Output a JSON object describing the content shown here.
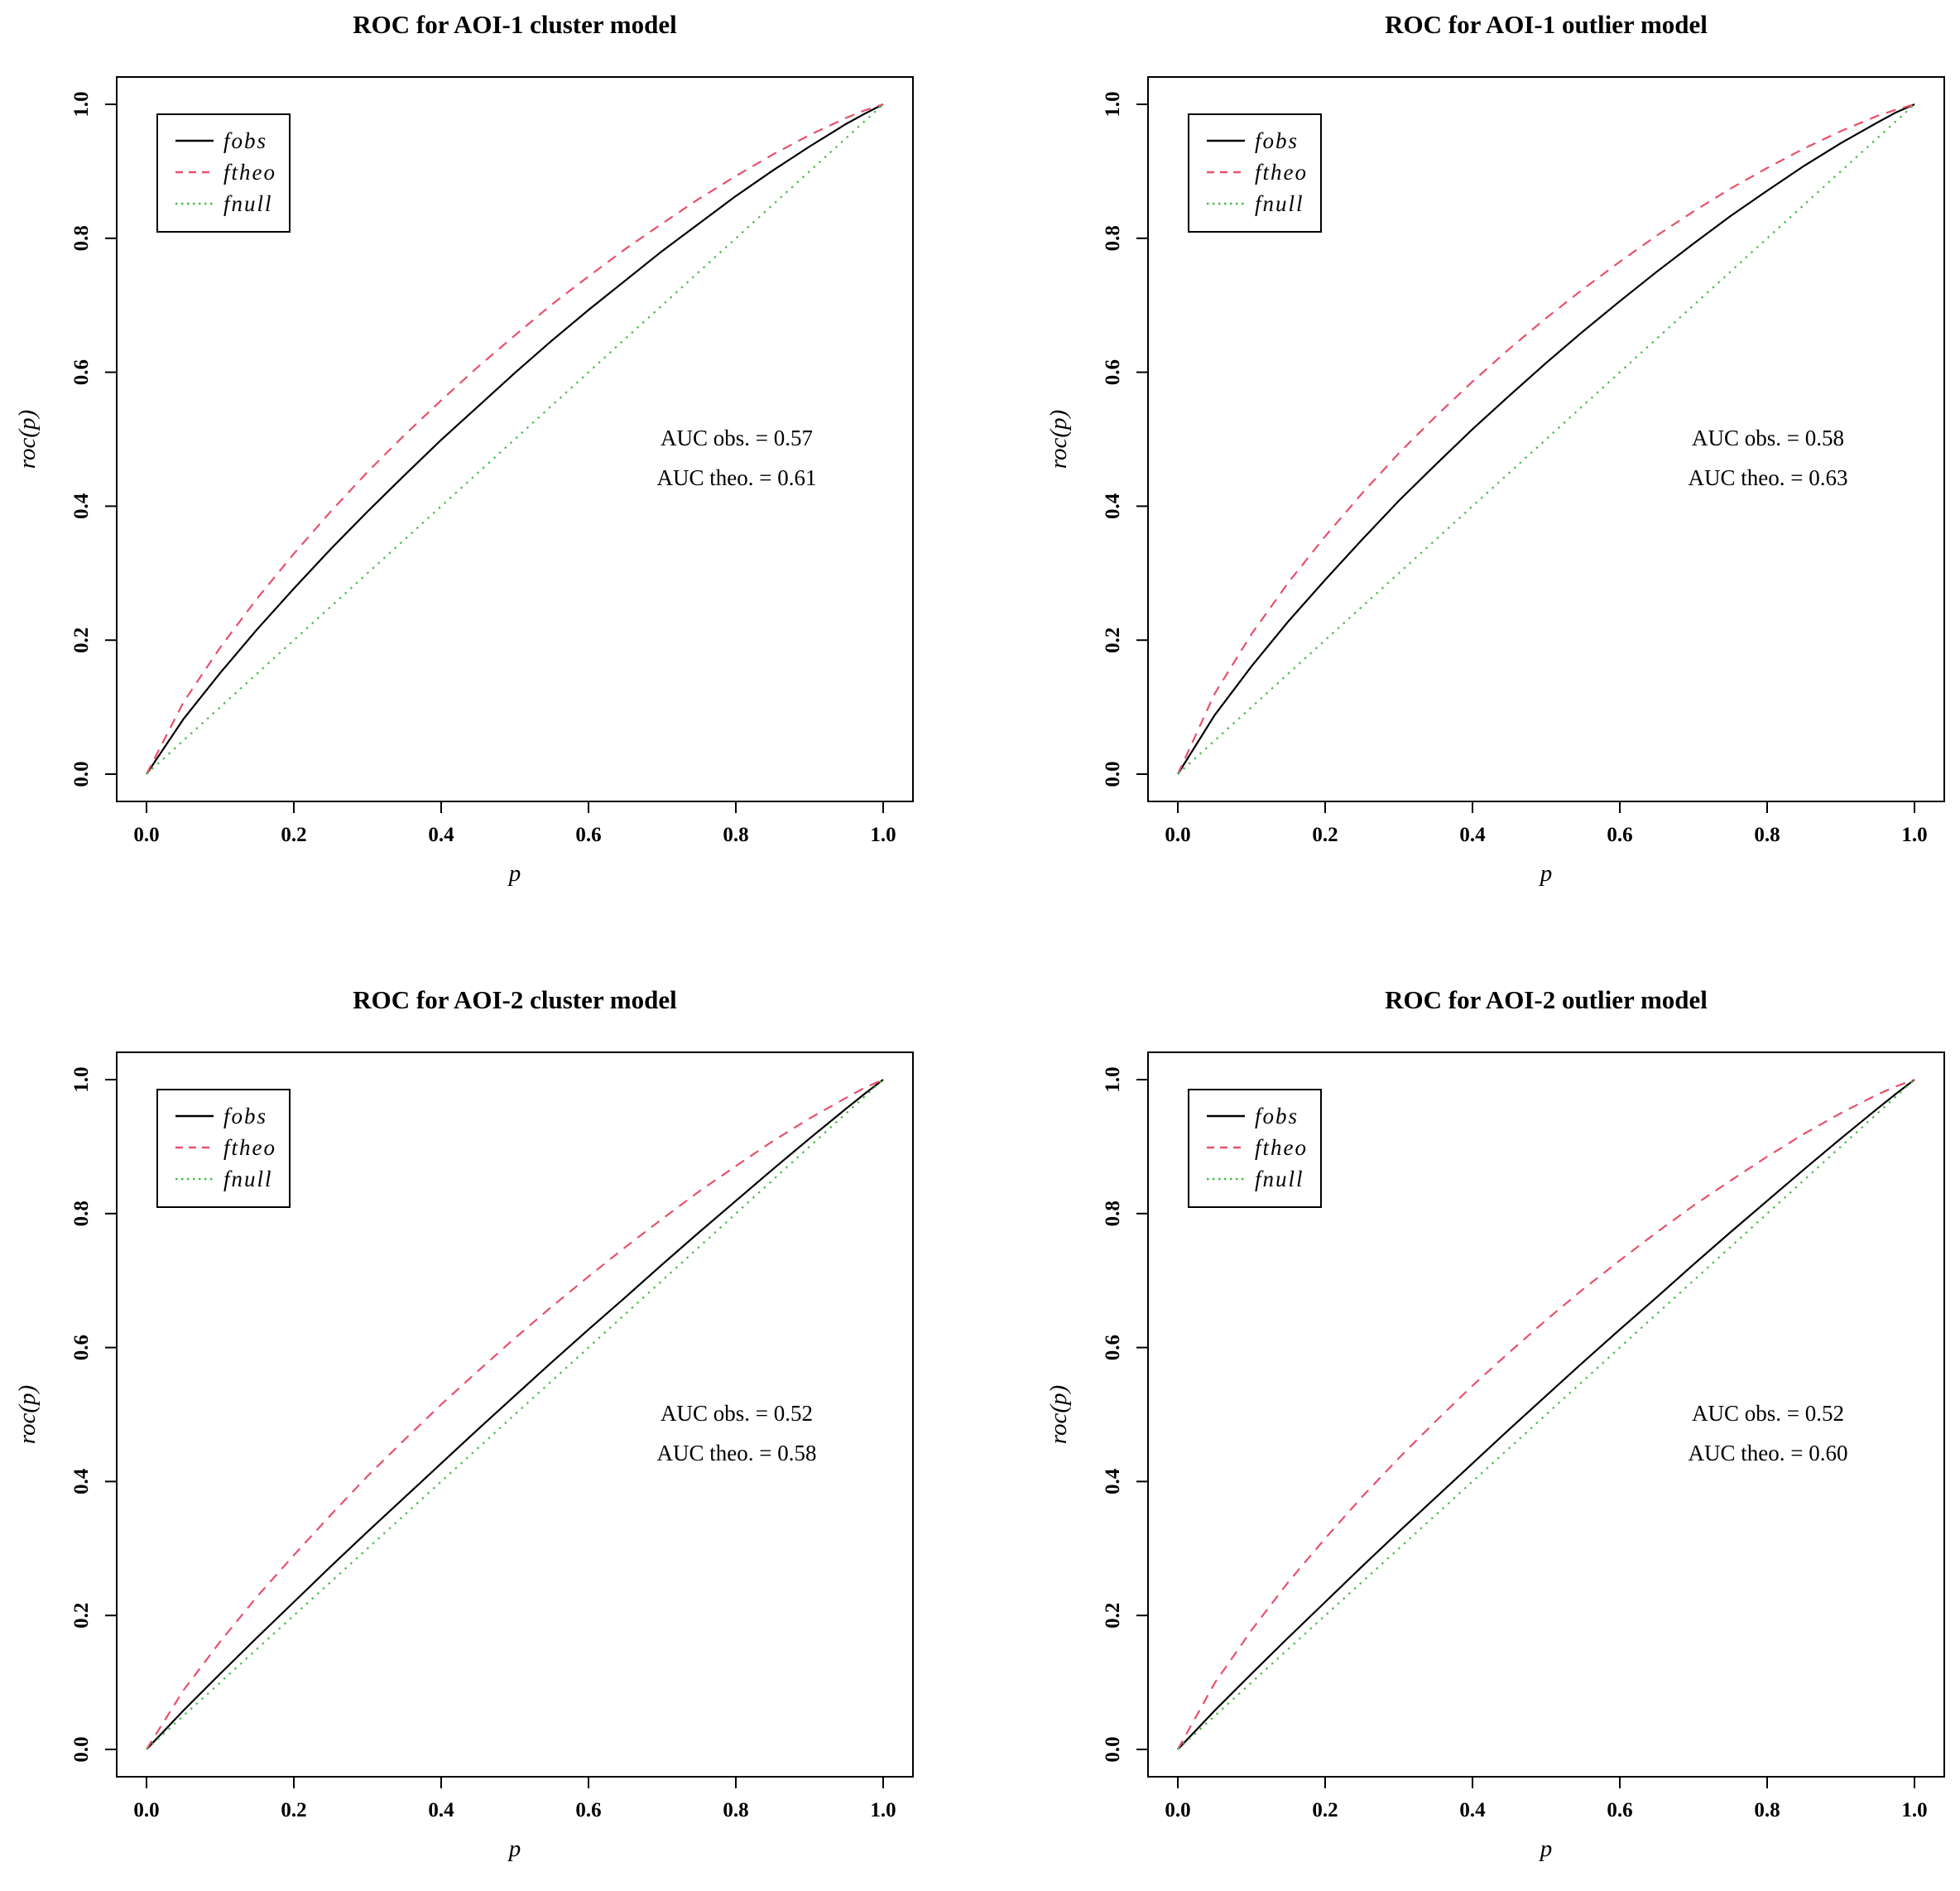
{
  "figure": {
    "background": "#ffffff",
    "rows": 2,
    "cols": 2
  },
  "legend": {
    "position": "topleft",
    "items": [
      {
        "label": "fobs",
        "color": "#000000",
        "line_style": "solid"
      },
      {
        "label": "ftheo",
        "color": "#e8506a",
        "line_style": "dashed"
      },
      {
        "label": "fnull",
        "color": "#4cbb4c",
        "line_style": "dotted"
      }
    ]
  },
  "chart_data": [
    {
      "type": "line",
      "title": "ROC for AOI-1 cluster model",
      "xlabel": "p",
      "ylabel": "roc(p)",
      "xlim": [
        0,
        1
      ],
      "ylim": [
        0,
        1
      ],
      "xticks": [
        "0.0",
        "0.2",
        "0.4",
        "0.6",
        "0.8",
        "1.0"
      ],
      "yticks": [
        "0.0",
        "0.2",
        "0.4",
        "0.6",
        "0.8",
        "1.0"
      ],
      "grid": false,
      "legend_position": "topleft",
      "annotations": [
        "AUC obs. = 0.57",
        "AUC theo. = 0.61"
      ],
      "auc": {
        "obs": 0.57,
        "theo": 0.61
      },
      "x": [
        0,
        0.05,
        0.1,
        0.15,
        0.2,
        0.25,
        0.3,
        0.35,
        0.4,
        0.45,
        0.5,
        0.55,
        0.6,
        0.65,
        0.7,
        0.75,
        0.8,
        0.85,
        0.9,
        0.95,
        0.975,
        1
      ],
      "series": [
        {
          "name": "fobs",
          "color": "#000000",
          "line_style": "solid",
          "values": [
            0,
            0.082,
            0.151,
            0.216,
            0.277,
            0.336,
            0.392,
            0.446,
            0.499,
            0.549,
            0.599,
            0.647,
            0.693,
            0.737,
            0.781,
            0.822,
            0.863,
            0.901,
            0.937,
            0.971,
            0.986,
            1
          ]
        },
        {
          "name": "ftheo",
          "color": "#e8506a",
          "line_style": "dashed",
          "values": [
            0,
            0.107,
            0.189,
            0.262,
            0.329,
            0.392,
            0.451,
            0.506,
            0.558,
            0.608,
            0.655,
            0.701,
            0.743,
            0.784,
            0.822,
            0.859,
            0.893,
            0.925,
            0.954,
            0.98,
            0.991,
            1
          ]
        },
        {
          "name": "fnull",
          "color": "#4cbb4c",
          "line_style": "dotted",
          "values": [
            0,
            0.05,
            0.1,
            0.15,
            0.2,
            0.25,
            0.3,
            0.35,
            0.4,
            0.45,
            0.5,
            0.55,
            0.6,
            0.65,
            0.7,
            0.75,
            0.8,
            0.85,
            0.9,
            0.95,
            0.975,
            1
          ]
        }
      ]
    },
    {
      "type": "line",
      "title": "ROC for AOI-1 outlier model",
      "xlabel": "p",
      "ylabel": "roc(p)",
      "xlim": [
        0,
        1
      ],
      "ylim": [
        0,
        1
      ],
      "xticks": [
        "0.0",
        "0.2",
        "0.4",
        "0.6",
        "0.8",
        "1.0"
      ],
      "yticks": [
        "0.0",
        "0.2",
        "0.4",
        "0.6",
        "0.8",
        "1.0"
      ],
      "grid": false,
      "legend_position": "topleft",
      "annotations": [
        "AUC obs. = 0.58",
        "AUC theo. = 0.63"
      ],
      "auc": {
        "obs": 0.58,
        "theo": 0.63
      },
      "x": [
        0,
        0.05,
        0.1,
        0.15,
        0.2,
        0.25,
        0.3,
        0.35,
        0.4,
        0.45,
        0.5,
        0.55,
        0.6,
        0.65,
        0.7,
        0.75,
        0.8,
        0.85,
        0.9,
        0.95,
        0.975,
        1
      ],
      "series": [
        {
          "name": "fobs",
          "color": "#000000",
          "line_style": "solid",
          "values": [
            0,
            0.088,
            0.161,
            0.228,
            0.29,
            0.35,
            0.408,
            0.462,
            0.515,
            0.565,
            0.614,
            0.661,
            0.706,
            0.75,
            0.792,
            0.833,
            0.871,
            0.908,
            0.942,
            0.973,
            0.988,
            1
          ]
        },
        {
          "name": "ftheo",
          "color": "#e8506a",
          "line_style": "dashed",
          "values": [
            0,
            0.12,
            0.209,
            0.286,
            0.355,
            0.419,
            0.479,
            0.534,
            0.586,
            0.635,
            0.681,
            0.724,
            0.765,
            0.804,
            0.84,
            0.874,
            0.905,
            0.934,
            0.96,
            0.983,
            0.992,
            1
          ]
        },
        {
          "name": "fnull",
          "color": "#4cbb4c",
          "line_style": "dotted",
          "values": [
            0,
            0.05,
            0.1,
            0.15,
            0.2,
            0.25,
            0.3,
            0.35,
            0.4,
            0.45,
            0.5,
            0.55,
            0.6,
            0.65,
            0.7,
            0.75,
            0.8,
            0.85,
            0.9,
            0.95,
            0.975,
            1
          ]
        }
      ]
    },
    {
      "type": "line",
      "title": "ROC for AOI-2 cluster model",
      "xlabel": "p",
      "ylabel": "roc(p)",
      "xlim": [
        0,
        1
      ],
      "ylim": [
        0,
        1
      ],
      "xticks": [
        "0.0",
        "0.2",
        "0.4",
        "0.6",
        "0.8",
        "1.0"
      ],
      "yticks": [
        "0.0",
        "0.2",
        "0.4",
        "0.6",
        "0.8",
        "1.0"
      ],
      "grid": false,
      "legend_position": "topleft",
      "annotations": [
        "AUC obs. = 0.52",
        "AUC theo. = 0.58"
      ],
      "auc": {
        "obs": 0.52,
        "theo": 0.58
      },
      "x": [
        0,
        0.05,
        0.1,
        0.15,
        0.2,
        0.25,
        0.3,
        0.35,
        0.4,
        0.45,
        0.5,
        0.55,
        0.6,
        0.65,
        0.7,
        0.75,
        0.8,
        0.85,
        0.9,
        0.95,
        0.975,
        1
      ],
      "series": [
        {
          "name": "fobs",
          "color": "#000000",
          "line_style": "solid",
          "values": [
            0,
            0.058,
            0.113,
            0.167,
            0.22,
            0.273,
            0.325,
            0.376,
            0.427,
            0.478,
            0.528,
            0.578,
            0.627,
            0.675,
            0.724,
            0.772,
            0.819,
            0.866,
            0.912,
            0.957,
            0.979,
            1
          ]
        },
        {
          "name": "ftheo",
          "color": "#e8506a",
          "line_style": "dashed",
          "values": [
            0,
            0.088,
            0.161,
            0.228,
            0.29,
            0.35,
            0.408,
            0.462,
            0.515,
            0.565,
            0.614,
            0.661,
            0.706,
            0.75,
            0.792,
            0.833,
            0.871,
            0.908,
            0.942,
            0.973,
            0.988,
            1
          ]
        },
        {
          "name": "fnull",
          "color": "#4cbb4c",
          "line_style": "dotted",
          "values": [
            0,
            0.05,
            0.1,
            0.15,
            0.2,
            0.25,
            0.3,
            0.35,
            0.4,
            0.45,
            0.5,
            0.55,
            0.6,
            0.65,
            0.7,
            0.75,
            0.8,
            0.85,
            0.9,
            0.95,
            0.975,
            1
          ]
        }
      ]
    },
    {
      "type": "line",
      "title": "ROC for AOI-2 outlier model",
      "xlabel": "p",
      "ylabel": "roc(p)",
      "xlim": [
        0,
        1
      ],
      "ylim": [
        0,
        1
      ],
      "xticks": [
        "0.0",
        "0.2",
        "0.4",
        "0.6",
        "0.8",
        "1.0"
      ],
      "yticks": [
        "0.0",
        "0.2",
        "0.4",
        "0.6",
        "0.8",
        "1.0"
      ],
      "grid": false,
      "legend_position": "topleft",
      "annotations": [
        "AUC obs. = 0.52",
        "AUC theo. = 0.60"
      ],
      "auc": {
        "obs": 0.52,
        "theo": 0.6
      },
      "x": [
        0,
        0.05,
        0.1,
        0.15,
        0.2,
        0.25,
        0.3,
        0.35,
        0.4,
        0.45,
        0.5,
        0.55,
        0.6,
        0.65,
        0.7,
        0.75,
        0.8,
        0.85,
        0.9,
        0.95,
        0.975,
        1
      ],
      "series": [
        {
          "name": "fobs",
          "color": "#000000",
          "line_style": "solid",
          "values": [
            0,
            0.058,
            0.113,
            0.167,
            0.22,
            0.273,
            0.325,
            0.376,
            0.427,
            0.478,
            0.528,
            0.578,
            0.627,
            0.675,
            0.724,
            0.772,
            0.819,
            0.866,
            0.912,
            0.957,
            0.979,
            1
          ]
        },
        {
          "name": "ftheo",
          "color": "#e8506a",
          "line_style": "dashed",
          "values": [
            0,
            0.099,
            0.178,
            0.25,
            0.315,
            0.377,
            0.435,
            0.49,
            0.543,
            0.593,
            0.641,
            0.687,
            0.73,
            0.772,
            0.812,
            0.849,
            0.885,
            0.919,
            0.95,
            0.978,
            0.99,
            1
          ]
        },
        {
          "name": "fnull",
          "color": "#4cbb4c",
          "line_style": "dotted",
          "values": [
            0,
            0.05,
            0.1,
            0.15,
            0.2,
            0.25,
            0.3,
            0.35,
            0.4,
            0.45,
            0.5,
            0.55,
            0.6,
            0.65,
            0.7,
            0.75,
            0.8,
            0.85,
            0.9,
            0.95,
            0.975,
            1
          ]
        }
      ]
    }
  ]
}
